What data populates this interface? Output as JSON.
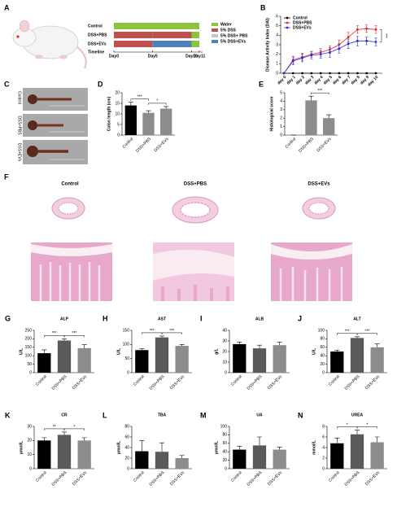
{
  "panel_labels": [
    "A",
    "B",
    "C",
    "D",
    "E",
    "F",
    "G",
    "H",
    "I",
    "J",
    "K",
    "L",
    "M",
    "N"
  ],
  "timeline": {
    "rows": [
      {
        "name": "Control",
        "segments": [
          {
            "from": 0,
            "to": 11,
            "color": "#8cc43f"
          }
        ]
      },
      {
        "name": "DSS+PBS",
        "segments": [
          {
            "from": 0,
            "to": 5,
            "color": "#c0504d"
          },
          {
            "from": 5,
            "to": 10,
            "color": "#c0504d"
          },
          {
            "from": 10,
            "to": 11,
            "color": "#8cc43f"
          }
        ]
      },
      {
        "name": "DSS+EVs",
        "segments": [
          {
            "from": 0,
            "to": 5,
            "color": "#c0504d"
          },
          {
            "from": 5,
            "to": 10,
            "color": "#4f81bd"
          },
          {
            "from": 10,
            "to": 11,
            "color": "#8cc43f"
          }
        ]
      }
    ],
    "axis_title": "Timeline",
    "days": [
      {
        "value": 0,
        "label": "Day0"
      },
      {
        "value": 5,
        "label": "Day5"
      },
      {
        "value": 10,
        "label": "Day10"
      },
      {
        "value": 11,
        "label": "Day11"
      }
    ],
    "legend": [
      {
        "label": "Water",
        "color": "#8cc43f"
      },
      {
        "label": "5% DSS",
        "color": "#c0504d"
      },
      {
        "label": "5% DSS+ PBS",
        "color": "#c8c8c8"
      },
      {
        "label": "5% DSS+EVs",
        "color": "#4f81bd"
      }
    ]
  },
  "photos": {
    "labels": [
      "Control",
      "DSS+PBS",
      "DSS+EVs"
    ]
  },
  "histology": {
    "groups": [
      "Control",
      "DSS+PBS",
      "DSS+EVs"
    ]
  },
  "chart_data": [
    {
      "type": "line",
      "ylabel": "Disease Activity Index (DAI)",
      "categories": [
        "day 0",
        "day 1",
        "day 2",
        "day 3",
        "day 4",
        "day 5",
        "day 6",
        "day 7",
        "day 8",
        "day 9",
        "day 10"
      ],
      "series": [
        {
          "name": "Control",
          "color": "#000000",
          "values": [
            0,
            0,
            0,
            0,
            0,
            0,
            0,
            0,
            0,
            0,
            0
          ],
          "errors": [
            0,
            0,
            0,
            0,
            0,
            0,
            0,
            0,
            0,
            0,
            0
          ]
        },
        {
          "name": "DSS+PBS",
          "color": "#e8262a",
          "values": [
            0,
            1.4,
            1.7,
            2.0,
            2.2,
            2.5,
            3.0,
            3.8,
            4.6,
            4.7,
            4.6
          ],
          "errors": [
            0,
            0.4,
            0.4,
            0.3,
            0.4,
            0.4,
            0.5,
            0.5,
            0.4,
            0.4,
            0.4
          ]
        },
        {
          "name": "DSS+EVs",
          "color": "#2b2bd6",
          "values": [
            0,
            1.3,
            1.6,
            1.9,
            2.0,
            2.2,
            2.6,
            3.1,
            3.4,
            3.4,
            3.3
          ],
          "errors": [
            0,
            0.4,
            0.4,
            0.4,
            0.4,
            0.5,
            0.5,
            0.5,
            0.5,
            0.4,
            0.4
          ]
        }
      ],
      "ylim": [
        0,
        6
      ],
      "yticks": [
        0,
        1,
        2,
        3,
        4,
        5,
        6
      ],
      "annotation": "***"
    },
    {
      "type": "bar",
      "ylabel": "Colon length (cm)",
      "categories": [
        "Control",
        "DSS+PBS",
        "DSS+EVs"
      ],
      "values": [
        14,
        10.5,
        12.5
      ],
      "errors": [
        1.5,
        1,
        1
      ],
      "colors": [
        "#000000",
        "#8c8c8c",
        "#8c8c8c"
      ],
      "ylim": [
        0,
        20
      ],
      "yticks": [
        0,
        5,
        10,
        15,
        20
      ],
      "significance": [
        {
          "label": "***",
          "between": [
            "Control",
            "DSS+PBS"
          ]
        },
        {
          "label": "*",
          "between": [
            "DSS+PBS",
            "DSS+EVs"
          ]
        }
      ]
    },
    {
      "type": "bar",
      "ylabel": "Histological score",
      "categories": [
        "Control",
        "DSS+PBS",
        "DSS+EVs"
      ],
      "values": [
        0,
        4.1,
        2.0
      ],
      "errors": [
        0,
        0.5,
        0.4
      ],
      "colors": [
        "#000000",
        "#8c8c8c",
        "#8c8c8c"
      ],
      "ylim": [
        0,
        5
      ],
      "yticks": [
        0,
        1,
        2,
        3,
        4,
        5
      ],
      "significance": [
        {
          "label": "***",
          "between": [
            "DSS+PBS",
            "DSS+EVs"
          ]
        }
      ]
    },
    {
      "type": "bar",
      "title": "ALP",
      "ylabel": "U/L",
      "categories": [
        "Control",
        "DSS+PBS",
        "DSS+EVs"
      ],
      "values": [
        115,
        190,
        145
      ],
      "errors": [
        20,
        10,
        20
      ],
      "colors": [
        "#000000",
        "#5a5a5a",
        "#8c8c8c"
      ],
      "ylim": [
        0,
        250
      ],
      "yticks": [
        0,
        50,
        100,
        150,
        200,
        250
      ],
      "significance": [
        {
          "label": "***",
          "between": [
            "Control",
            "DSS+PBS"
          ]
        },
        {
          "label": "***",
          "between": [
            "DSS+PBS",
            "DSS+EVs"
          ]
        }
      ]
    },
    {
      "type": "bar",
      "title": "AST",
      "ylabel": "U/L",
      "categories": [
        "Control",
        "DSS+PBS",
        "DSS+EVs"
      ],
      "values": [
        80,
        125,
        95
      ],
      "errors": [
        5,
        5,
        5
      ],
      "colors": [
        "#000000",
        "#5a5a5a",
        "#8c8c8c"
      ],
      "ylim": [
        0,
        150
      ],
      "yticks": [
        0,
        50,
        100,
        150
      ],
      "significance": [
        {
          "label": "***",
          "between": [
            "Control",
            "DSS+PBS"
          ]
        },
        {
          "label": "***",
          "between": [
            "DSS+PBS",
            "DSS+EVs"
          ]
        }
      ]
    },
    {
      "type": "bar",
      "title": "ALB",
      "ylabel": "g/L",
      "categories": [
        "Control",
        "DSS+PBS",
        "DSS+EVs"
      ],
      "values": [
        27,
        23,
        26
      ],
      "errors": [
        2,
        3,
        3
      ],
      "colors": [
        "#000000",
        "#5a5a5a",
        "#8c8c8c"
      ],
      "ylim": [
        0,
        40
      ],
      "yticks": [
        0,
        10,
        20,
        30,
        40
      ],
      "significance": []
    },
    {
      "type": "bar",
      "title": "ALT",
      "ylabel": "U/L",
      "categories": [
        "Control",
        "DSS+PBS",
        "DSS+EVs"
      ],
      "values": [
        50,
        82,
        60
      ],
      "errors": [
        3,
        3,
        8
      ],
      "colors": [
        "#000000",
        "#5a5a5a",
        "#8c8c8c"
      ],
      "ylim": [
        0,
        100
      ],
      "yticks": [
        0,
        20,
        40,
        60,
        80,
        100
      ],
      "significance": [
        {
          "label": "***",
          "between": [
            "Control",
            "DSS+PBS"
          ]
        },
        {
          "label": "***",
          "between": [
            "DSS+PBS",
            "DSS+EVs"
          ]
        }
      ]
    },
    {
      "type": "bar",
      "title": "CR",
      "ylabel": "μmol/L",
      "categories": [
        "Control",
        "DSS+PBS",
        "DSS+EVs"
      ],
      "values": [
        20,
        24,
        20
      ],
      "errors": [
        2,
        2,
        2
      ],
      "colors": [
        "#000000",
        "#5a5a5a",
        "#8c8c8c"
      ],
      "ylim": [
        0,
        30
      ],
      "yticks": [
        0,
        10,
        20,
        30
      ],
      "significance": [
        {
          "label": "**",
          "between": [
            "Control",
            "DSS+PBS"
          ]
        },
        {
          "label": "*",
          "between": [
            "DSS+PBS",
            "DSS+EVs"
          ]
        }
      ]
    },
    {
      "type": "bar",
      "title": "TBA",
      "ylabel": "μmol/L",
      "categories": [
        "Control",
        "DSS+PBS",
        "DSS+EVs"
      ],
      "values": [
        33,
        32,
        20
      ],
      "errors": [
        20,
        17,
        5
      ],
      "colors": [
        "#000000",
        "#5a5a5a",
        "#8c8c8c"
      ],
      "ylim": [
        0,
        80
      ],
      "yticks": [
        0,
        20,
        40,
        60,
        80
      ],
      "significance": []
    },
    {
      "type": "bar",
      "title": "UA",
      "ylabel": "μmol/L",
      "categories": [
        "Control",
        "DSS+PBS",
        "DSS+EVs"
      ],
      "values": [
        45,
        55,
        45
      ],
      "errors": [
        8,
        20,
        6
      ],
      "colors": [
        "#000000",
        "#5a5a5a",
        "#8c8c8c"
      ],
      "ylim": [
        0,
        100
      ],
      "yticks": [
        0,
        20,
        40,
        60,
        80,
        100
      ],
      "significance": []
    },
    {
      "type": "bar",
      "title": "UREA",
      "ylabel": "mmol/L",
      "categories": [
        "Control",
        "DSS+PBS",
        "DSS+EVs"
      ],
      "values": [
        4.8,
        6.5,
        5.0
      ],
      "errors": [
        1,
        0.8,
        1
      ],
      "colors": [
        "#000000",
        "#5a5a5a",
        "#8c8c8c"
      ],
      "ylim": [
        0,
        8
      ],
      "yticks": [
        0,
        2,
        4,
        6,
        8
      ],
      "significance": [
        {
          "label": "*",
          "between": [
            "Control",
            "DSS+PBS"
          ]
        },
        {
          "label": "*",
          "between": [
            "DSS+PBS",
            "DSS+EVs"
          ]
        }
      ]
    }
  ]
}
